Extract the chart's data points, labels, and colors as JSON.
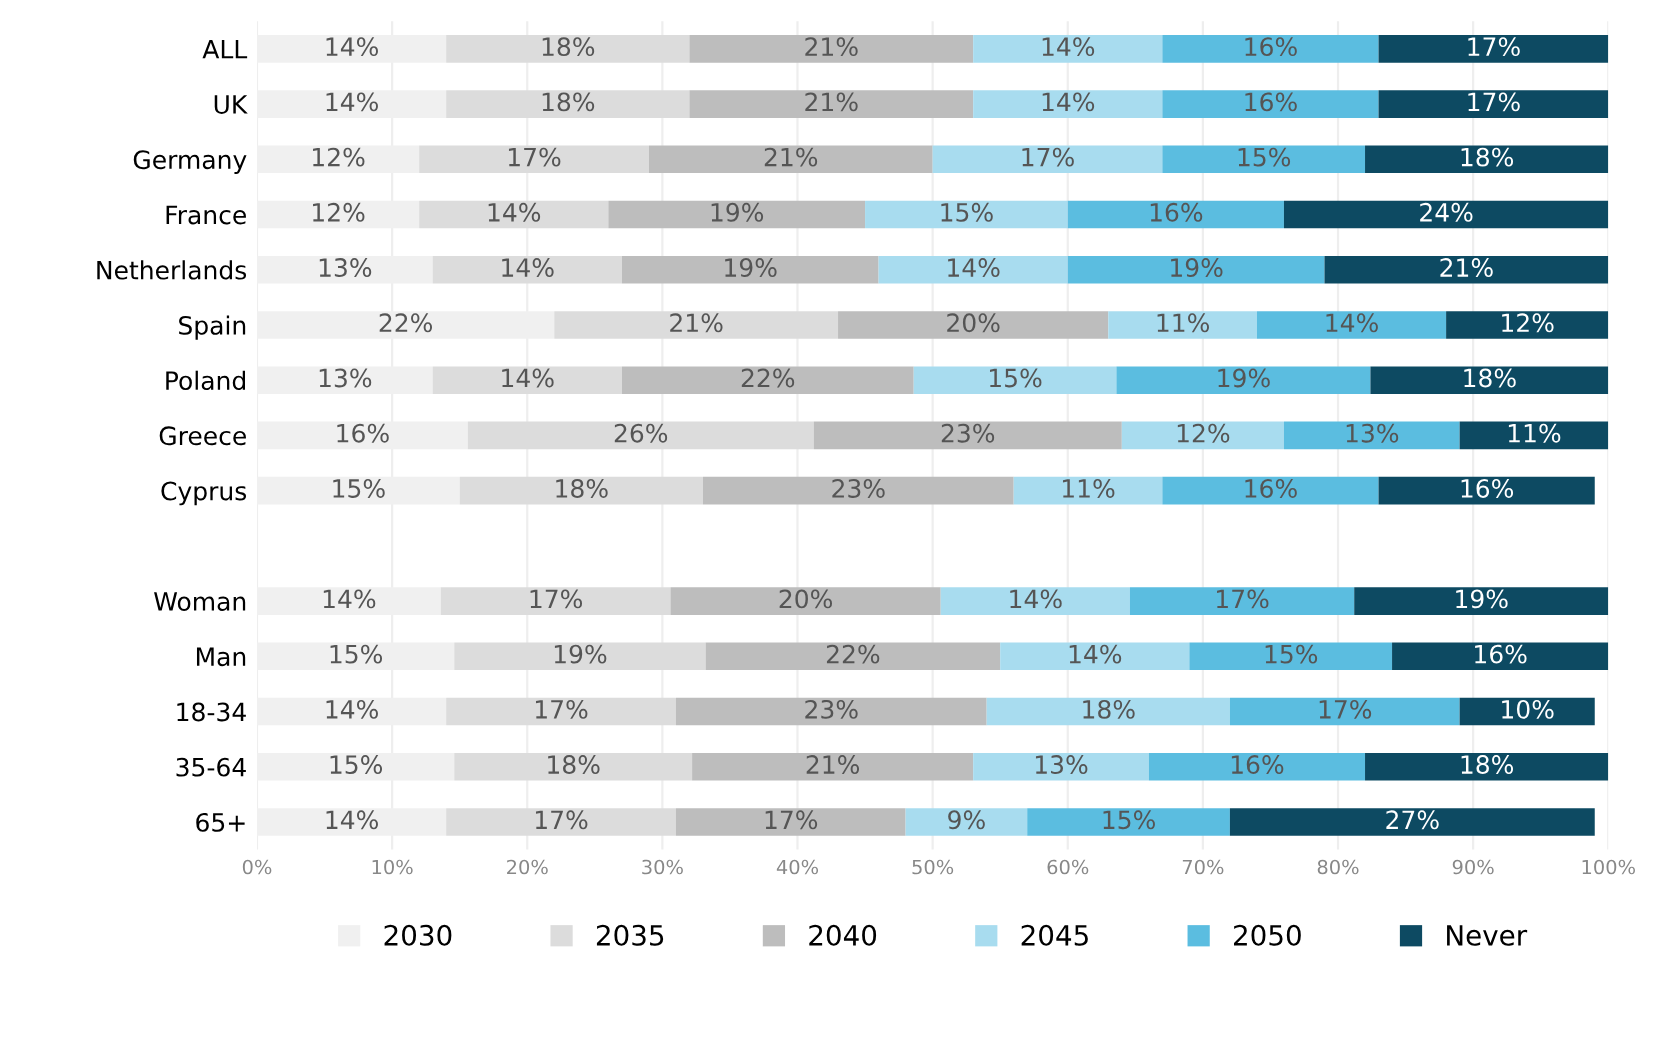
{
  "chart_data": {
    "type": "bar",
    "orientation": "horizontal",
    "stacked": true,
    "grid": "x",
    "legend": "bottom",
    "categories": [
      "ALL",
      "UK",
      "Germany",
      "France",
      "Netherlands",
      "Spain",
      "Poland",
      "Greece",
      "Cyprus",
      null,
      "Woman",
      "Man",
      "18-34",
      "35-64",
      "65+"
    ],
    "xlim": [
      0,
      100
    ],
    "xticks": [
      {
        "value": 0,
        "label": "0%"
      },
      {
        "value": 10,
        "label": "10%"
      },
      {
        "value": 20,
        "label": "20%"
      },
      {
        "value": 30,
        "label": "30%"
      },
      {
        "value": 40,
        "label": "40%"
      },
      {
        "value": 50,
        "label": "50%"
      },
      {
        "value": 60,
        "label": "60%"
      },
      {
        "value": 70,
        "label": "70%"
      },
      {
        "value": 80,
        "label": "80%"
      },
      {
        "value": 90,
        "label": "90%"
      },
      {
        "value": 100,
        "label": "100%"
      }
    ],
    "series": [
      {
        "name": "2030",
        "color": "#f0f0f0",
        "values": [
          14,
          14,
          12,
          12,
          13,
          22,
          13,
          15.6,
          15,
          null,
          13.6,
          14.6,
          14,
          14.6,
          14
        ],
        "value_labels": [
          "14%",
          "14%",
          "12%",
          "12%",
          "13%",
          "22%",
          "13%",
          "16%",
          "15%",
          null,
          "14%",
          "15%",
          "14%",
          "15%",
          "14%"
        ]
      },
      {
        "name": "2035",
        "color": "#dcdcdc",
        "values": [
          18,
          18,
          17,
          14,
          14,
          21,
          14,
          25.6,
          18,
          null,
          17,
          18.6,
          17,
          17.6,
          17
        ],
        "value_labels": [
          "18%",
          "18%",
          "17%",
          "14%",
          "14%",
          "21%",
          "14%",
          "26%",
          "18%",
          null,
          "17%",
          "19%",
          "17%",
          "18%",
          "17%"
        ]
      },
      {
        "name": "2040",
        "color": "#bdbdbd",
        "values": [
          21,
          21,
          21,
          19,
          19,
          20,
          21.6,
          22.8,
          23,
          null,
          20,
          21.8,
          23,
          20.8,
          17
        ],
        "value_labels": [
          "21%",
          "21%",
          "21%",
          "19%",
          "19%",
          "20%",
          "22%",
          "23%",
          "23%",
          null,
          "20%",
          "22%",
          "23%",
          "21%",
          "17%"
        ]
      },
      {
        "name": "2045",
        "color": "#a8dcef",
        "values": [
          14,
          14,
          17,
          15,
          14,
          11,
          15,
          12,
          11,
          null,
          14,
          14,
          18,
          13,
          9
        ],
        "value_labels": [
          "14%",
          "14%",
          "17%",
          "15%",
          "14%",
          "11%",
          "15%",
          "12%",
          "11%",
          null,
          "14%",
          "14%",
          "18%",
          "13%",
          "9%"
        ]
      },
      {
        "name": "2050",
        "color": "#5bbde0",
        "values": [
          16,
          16,
          15,
          16,
          19,
          14,
          18.8,
          13,
          16,
          null,
          16.6,
          15,
          17,
          16,
          15
        ],
        "value_labels": [
          "16%",
          "16%",
          "15%",
          "16%",
          "19%",
          "14%",
          "19%",
          "13%",
          "16%",
          null,
          "17%",
          "15%",
          "17%",
          "16%",
          "15%"
        ]
      },
      {
        "name": "Never",
        "color": "#0d4a62",
        "values": [
          17,
          17,
          18,
          24,
          21,
          12,
          17.6,
          11,
          16,
          null,
          18.8,
          16,
          10,
          18,
          27
        ],
        "value_labels": [
          "17%",
          "17%",
          "18%",
          "24%",
          "21%",
          "12%",
          "18%",
          "11%",
          "16%",
          null,
          "19%",
          "16%",
          "10%",
          "18%",
          "27%"
        ]
      }
    ]
  }
}
